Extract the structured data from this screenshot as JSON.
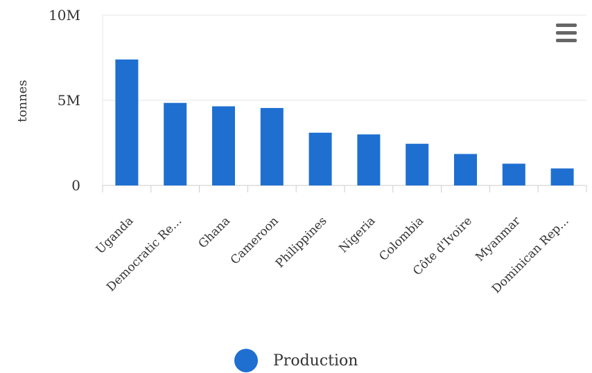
{
  "chart_data": {
    "type": "bar",
    "title": "",
    "xlabel": "",
    "ylabel": "tonnes",
    "ylim": [
      0,
      10000000
    ],
    "yticks": [
      {
        "value": 0,
        "label": "0"
      },
      {
        "value": 5000000,
        "label": "5M"
      },
      {
        "value": 10000000,
        "label": "10M"
      }
    ],
    "categories": [
      "Uganda",
      "Democratic Re...",
      "Ghana",
      "Cameroon",
      "Philippines",
      "Nigeria",
      "Colombia",
      "Côte d'Ivoire",
      "Myanmar",
      "Dominican Rep..."
    ],
    "series": [
      {
        "name": "Production",
        "color": "#1f6fd1",
        "values": [
          7400000,
          4850000,
          4650000,
          4550000,
          3100000,
          3000000,
          2450000,
          1850000,
          1280000,
          1000000
        ]
      }
    ],
    "grid": true,
    "legend": "bottom-center"
  },
  "menu": {
    "icon": "hamburger-menu-icon"
  }
}
